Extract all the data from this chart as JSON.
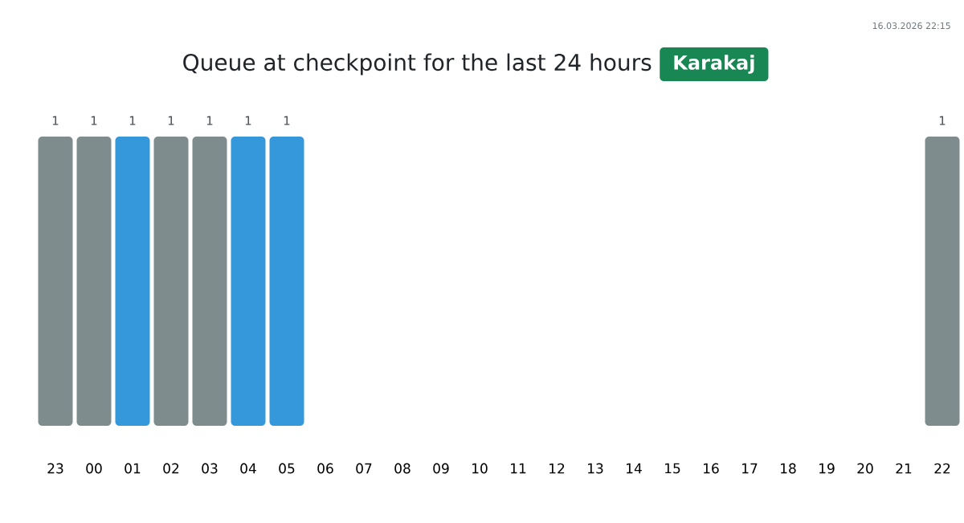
{
  "chart_data": {
    "type": "bar",
    "title": "Queue at checkpoint for the last 24 hours",
    "subtitle": "Karakaj",
    "annotations": [
      "16.03.2026 22:15"
    ],
    "categories": [
      "23",
      "00",
      "01",
      "02",
      "03",
      "04",
      "05",
      "06",
      "07",
      "08",
      "09",
      "10",
      "11",
      "12",
      "13",
      "14",
      "15",
      "16",
      "17",
      "18",
      "19",
      "20",
      "21",
      "22"
    ],
    "values": [
      1,
      1,
      1,
      1,
      1,
      1,
      1,
      null,
      null,
      null,
      null,
      null,
      null,
      null,
      null,
      null,
      null,
      null,
      null,
      null,
      null,
      null,
      null,
      1
    ],
    "colors": [
      "#7f8c8d",
      "#7f8c8d",
      "#3498db",
      "#7f8c8d",
      "#7f8c8d",
      "#3498db",
      "#3498db",
      null,
      null,
      null,
      null,
      null,
      null,
      null,
      null,
      null,
      null,
      null,
      null,
      null,
      null,
      null,
      null,
      "#7f8c8d"
    ],
    "ylim": [
      0,
      1
    ],
    "data_labels": true,
    "tick_labels": "x",
    "grid": false
  }
}
